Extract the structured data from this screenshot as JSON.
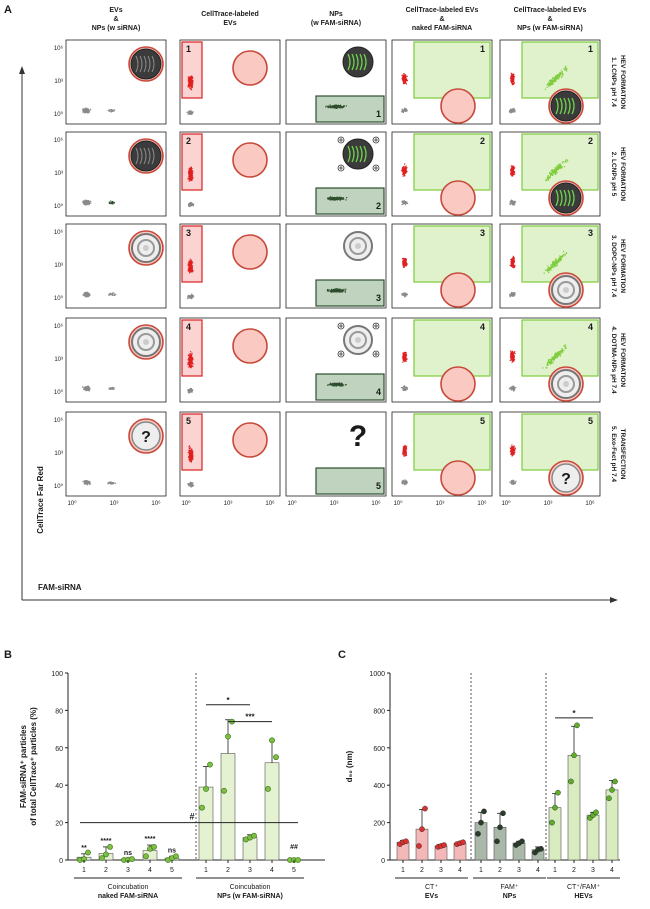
{
  "panelA": {
    "letter": "A",
    "col_headers": [
      [
        "EVs",
        "&",
        "NPs (w siRNA)"
      ],
      [
        "CellTrace-labeled",
        "EVs"
      ],
      [
        "NPs",
        "(w FAM-siRNA)"
      ],
      [
        "CellTrace-labeled EVs",
        "&",
        "naked FAM-siRNA"
      ],
      [
        "CellTrace-labeled EVs",
        "&",
        "NPs (w FAM-siRNA)"
      ]
    ],
    "row_labels": [
      [
        "1. LCNPs pH 7.4",
        "HEV FORMATION"
      ],
      [
        "2. LCNPs pH 5",
        "HEV FORMATION"
      ],
      [
        "3. DOPC-NPs pH 7.4",
        "HEV FORMATION"
      ],
      [
        "4. DOTMA-NPs pH 7.4",
        "HEV FORMATION"
      ],
      [
        "5. Exo-Fect pH 7.4",
        "TRANSFECTION"
      ]
    ],
    "gate_numbers": [
      "1",
      "2",
      "3",
      "4",
      "5"
    ],
    "y_ticks": [
      "10⁶",
      "10³",
      "10⁰"
    ],
    "x_ticks": [
      "10⁰",
      "10³",
      "10⁶"
    ],
    "y_axis_label": "CellTrace Far Red",
    "x_axis_label": "FAM-siRNA",
    "unknown_mark": "?",
    "colors": {
      "red": "#e02020",
      "green": "#7dcc3a",
      "dark_green": "#2f4f2f",
      "gray": "#8a8a8a"
    }
  },
  "panelB": {
    "letter": "B",
    "y_label_lines": [
      "FAM-siRNA⁺ particles",
      "of total CellTrace⁺ particles (%)"
    ],
    "y_ticks": [
      "0",
      "20",
      "40",
      "60",
      "80",
      "100"
    ],
    "groups": [
      {
        "title_lines": [
          "Coincubation",
          "naked FAM-siRNA"
        ],
        "categories": [
          "1",
          "2",
          "3",
          "4",
          "5"
        ],
        "means": [
          1.5,
          3.5,
          0.3,
          5.0,
          1.0
        ],
        "sds": [
          1.8,
          3.5,
          0.3,
          3.0,
          1.0
        ],
        "points": [
          [
            0,
            0.5,
            4
          ],
          [
            1,
            3,
            7
          ],
          [
            0,
            0.2,
            0.5
          ],
          [
            2,
            6,
            7
          ],
          [
            0,
            1,
            2
          ]
        ],
        "stars": [
          "**",
          "****",
          "ns",
          "****",
          "ns"
        ]
      },
      {
        "title_lines": [
          "Coincubation",
          "NPs (w FAM-siRNA)"
        ],
        "categories": [
          "1",
          "2",
          "3",
          "4",
          "5"
        ],
        "means": [
          39,
          57,
          12,
          52,
          0
        ],
        "sds": [
          11,
          18,
          1.5,
          12,
          0
        ],
        "points": [
          [
            28,
            38,
            51
          ],
          [
            37,
            66,
            74
          ],
          [
            11,
            12,
            13
          ],
          [
            38,
            64,
            55
          ],
          [
            0,
            0,
            0
          ]
        ],
        "stars": [
          "",
          "",
          "",
          "",
          "##"
        ]
      }
    ],
    "hash_mark": "#",
    "sig": [
      "*",
      "***"
    ]
  },
  "panelC": {
    "letter": "C",
    "y_label": "d₅₀ (nm)",
    "y_ticks": [
      "0",
      "200",
      "400",
      "600",
      "800",
      "1000"
    ],
    "groups": [
      {
        "title_lines": [
          "CT⁺",
          "EVs"
        ],
        "categories": [
          "1",
          "2",
          "3",
          "4"
        ],
        "means": [
          95,
          165,
          75,
          90
        ],
        "sds": [
          10,
          105,
          8,
          6
        ],
        "points": [
          [
            85,
            95,
            100
          ],
          [
            75,
            165,
            275
          ],
          [
            70,
            75,
            80
          ],
          [
            85,
            90,
            95
          ]
        ],
        "color": "#f4b8b8",
        "dot": "#d93030"
      },
      {
        "title_lines": [
          "FAM⁺",
          "NPs"
        ],
        "categories": [
          "1",
          "2",
          "3",
          "4"
        ],
        "means": [
          200,
          175,
          90,
          55
        ],
        "sds": [
          55,
          75,
          10,
          15
        ],
        "points": [
          [
            140,
            200,
            260
          ],
          [
            100,
            175,
            250
          ],
          [
            80,
            90,
            100
          ],
          [
            40,
            55,
            60
          ]
        ],
        "color": "#a9b8a9",
        "dot": "#2b3b2b"
      },
      {
        "title_lines": [
          "CT⁺/FAM⁺",
          "HEVs"
        ],
        "categories": [
          "1",
          "2",
          "3",
          "4"
        ],
        "means": [
          280,
          560,
          240,
          375
        ],
        "sds": [
          75,
          155,
          15,
          50
        ],
        "points": [
          [
            200,
            280,
            360
          ],
          [
            420,
            560,
            720
          ],
          [
            225,
            240,
            255
          ],
          [
            330,
            375,
            420
          ]
        ],
        "color": "#d8ecc0",
        "dot": "#5fae2a"
      }
    ],
    "sig": [
      "*"
    ]
  }
}
